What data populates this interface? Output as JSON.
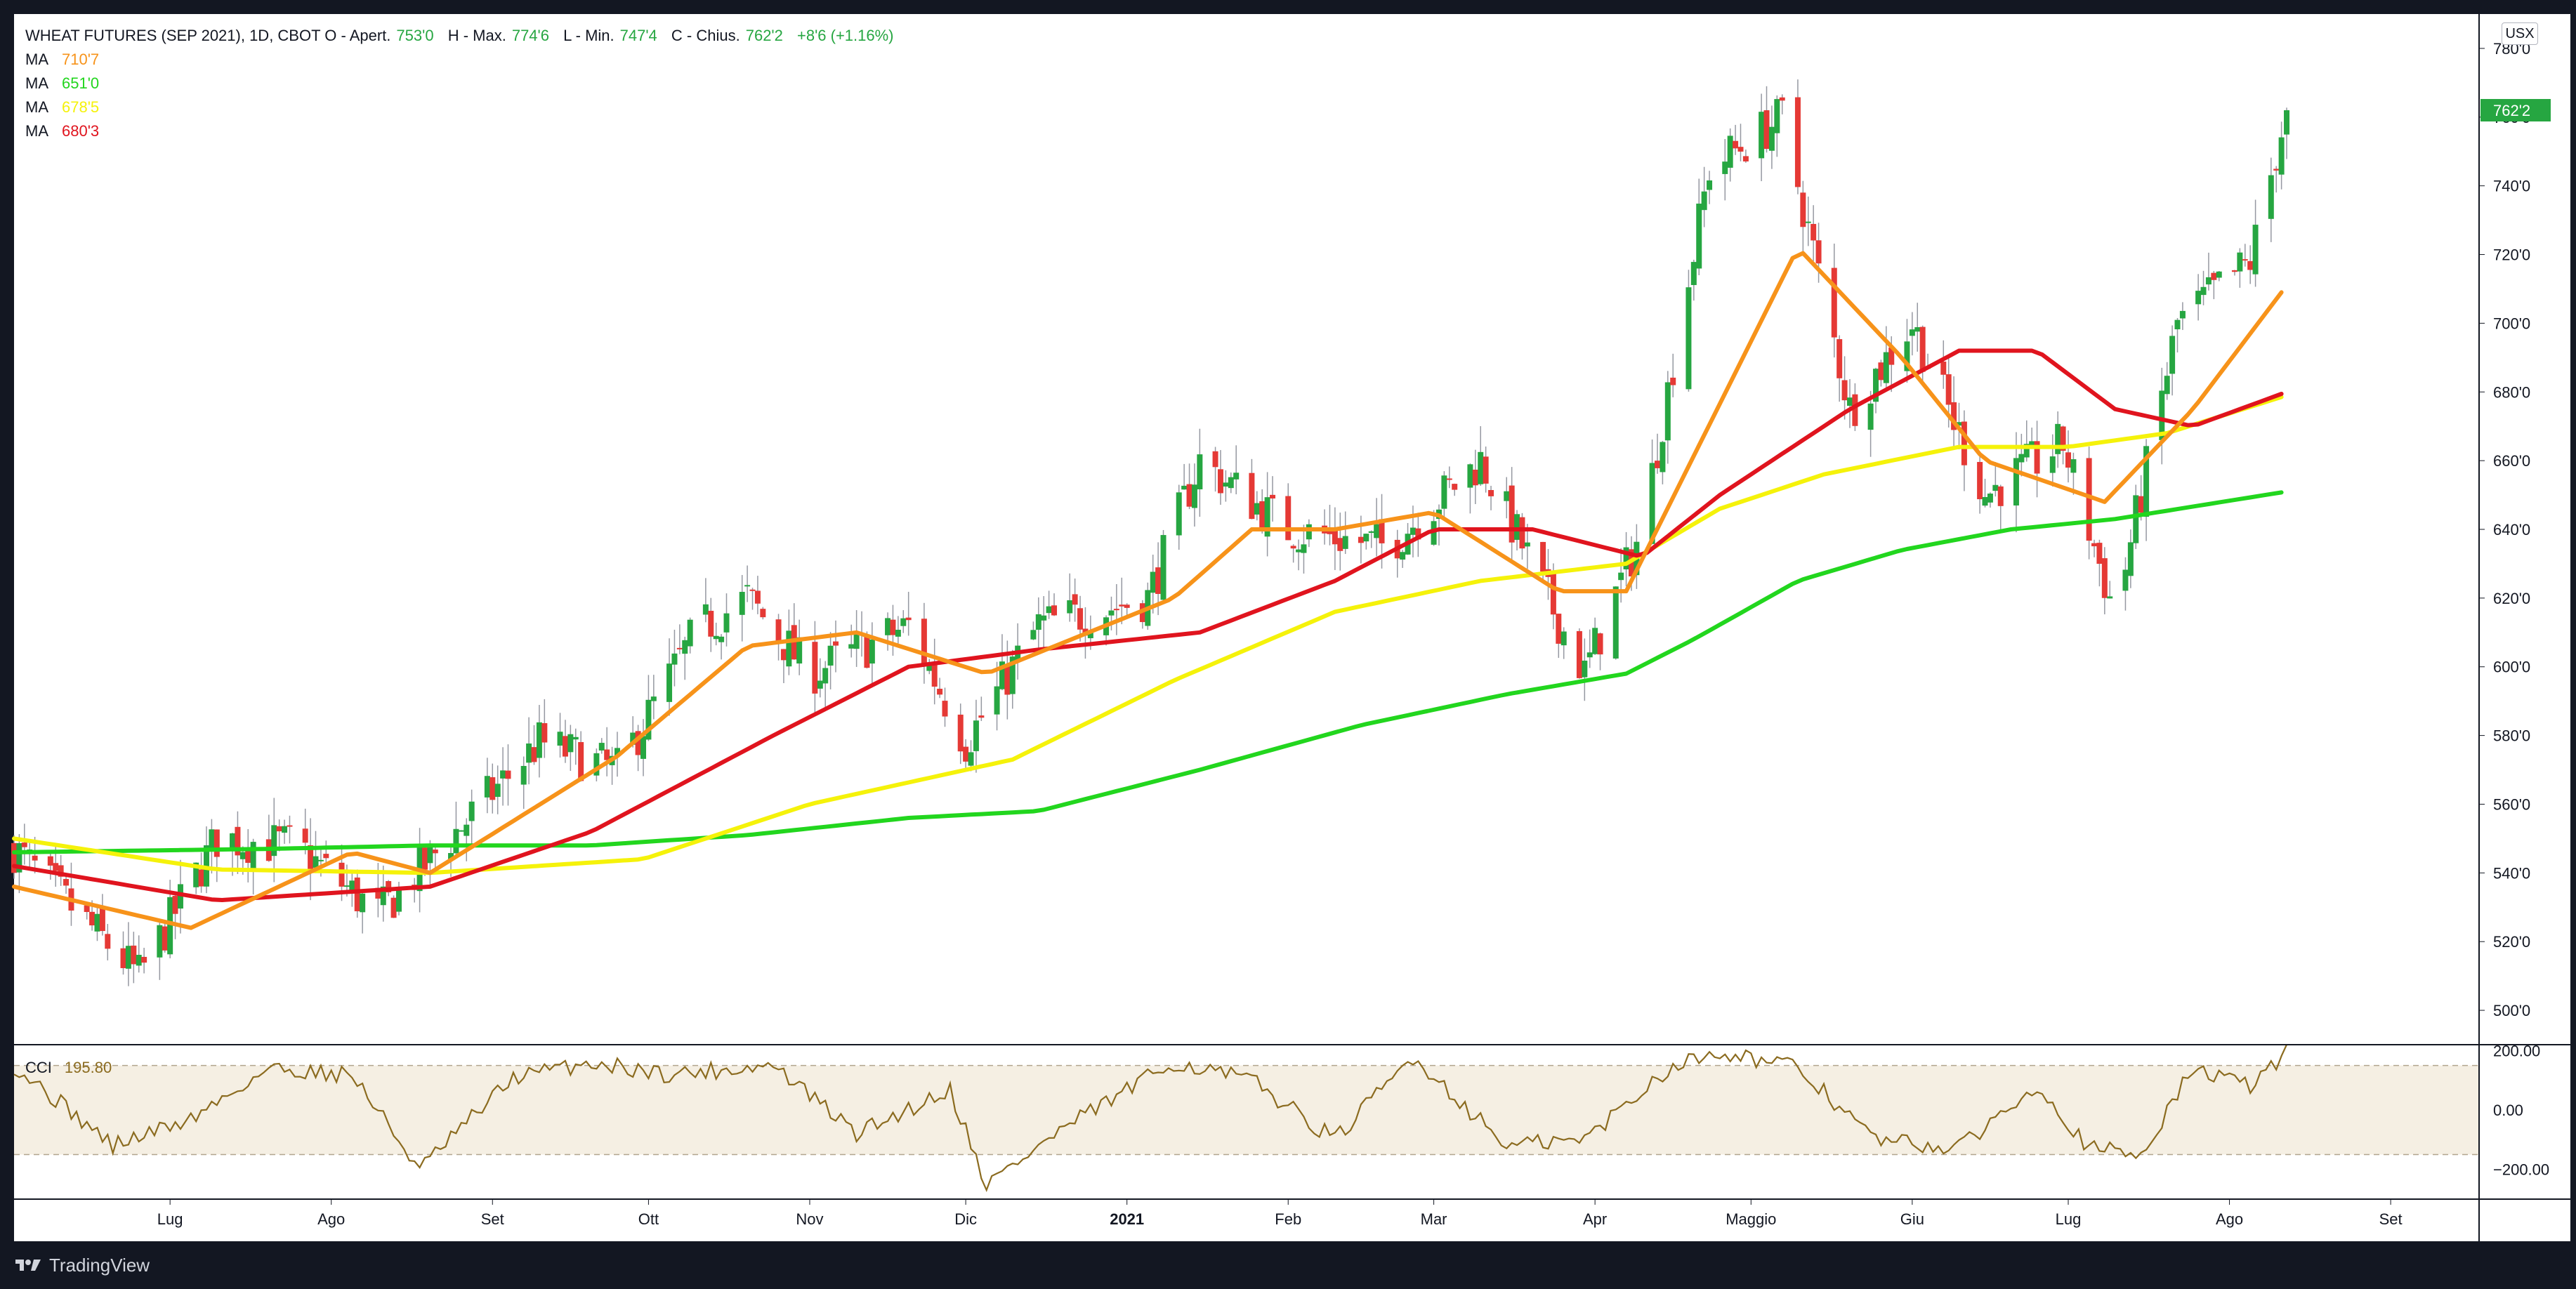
{
  "symbol": {
    "title": "WHEAT FUTURES (SEP 2021), 1D, CBOT",
    "open_label": "O - Apert.",
    "open": "753'0",
    "high_label": "H - Max.",
    "high": "774'6",
    "low_label": "L - Min.",
    "low": "747'4",
    "close_label": "C - Chius.",
    "close": "762'2",
    "change": "+8'6 (+1.16%)",
    "currency_button": "USX",
    "last_price_badge": "762'2"
  },
  "moving_averages": [
    {
      "label": "MA",
      "value": "710'7",
      "color": "#F7931A"
    },
    {
      "label": "MA",
      "value": "651'0",
      "color": "#22D61E"
    },
    {
      "label": "MA",
      "value": "678'5",
      "color": "#F5F20A"
    },
    {
      "label": "MA",
      "value": "680'3",
      "color": "#E0141E"
    }
  ],
  "cci": {
    "label": "CCI",
    "value": "195.80",
    "color": "#8B6B1F"
  },
  "branding": {
    "name": "TradingView"
  },
  "colors": {
    "up": "#26A641",
    "down": "#E53935",
    "wick": "#9598a1",
    "background": "#ffffff"
  },
  "chart_data": {
    "type": "candlestick",
    "x_tick_labels": [
      "Lug",
      "Ago",
      "Set",
      "Ott",
      "Nov",
      "Dic",
      "2021",
      "Feb",
      "Mar",
      "Apr",
      "Maggio",
      "Giu",
      "Lug",
      "Ago",
      "Set"
    ],
    "y_tick_labels": [
      "500'0",
      "520'0",
      "540'0",
      "560'0",
      "580'0",
      "600'0",
      "620'0",
      "640'0",
      "660'0",
      "680'0",
      "700'0",
      "720'0",
      "740'0",
      "760'0",
      "780'0"
    ],
    "ylim": [
      490,
      790
    ],
    "price_anchors": {
      "x": [
        "2020-06-01",
        "2020-06-25",
        "2020-07-10",
        "2020-07-25",
        "2020-08-10",
        "2020-08-25",
        "2020-09-10",
        "2020-09-25",
        "2020-10-10",
        "2020-10-20",
        "2020-11-01",
        "2020-11-20",
        "2020-12-01",
        "2020-12-15",
        "2021-01-05",
        "2021-01-15",
        "2021-02-01",
        "2021-02-20",
        "2021-03-10",
        "2021-03-30",
        "2021-04-10",
        "2021-04-23",
        "2021-05-07",
        "2021-05-20",
        "2021-06-01",
        "2021-06-15",
        "2021-06-30",
        "2021-07-10",
        "2021-07-22",
        "2021-08-05",
        "2021-08-12"
      ],
      "close": [
        547,
        510,
        550,
        548,
        528,
        552,
        578,
        570,
        610,
        620,
        598,
        612,
        578,
        612,
        620,
        660,
        640,
        635,
        660,
        598,
        640,
        745,
        760,
        675,
        700,
        650,
        665,
        615,
        700,
        718,
        762
      ]
    },
    "ma_fast": {
      "x": [
        "2020-06-01",
        "2020-07-05",
        "2020-08-05",
        "2020-08-20",
        "2020-09-25",
        "2020-10-20",
        "2020-11-10",
        "2020-12-05",
        "2021-01-10",
        "2021-01-25",
        "2021-02-10",
        "2021-03-01",
        "2021-03-25",
        "2021-04-07",
        "2021-05-10",
        "2021-05-30",
        "2021-06-15",
        "2021-07-08",
        "2021-07-25",
        "2021-08-12"
      ],
      "y": [
        536,
        524,
        546,
        540,
        574,
        606,
        610,
        598,
        620,
        640,
        640,
        645,
        622,
        622,
        722,
        690,
        660,
        648,
        675,
        711
      ]
    },
    "ma_slow": {
      "x": [
        "2020-06-01",
        "2020-07-20",
        "2020-08-20",
        "2020-09-20",
        "2020-10-20",
        "2020-11-20",
        "2020-12-15",
        "2021-01-15",
        "2021-02-15",
        "2021-03-15",
        "2021-04-07",
        "2021-04-20",
        "2021-05-10",
        "2021-05-30",
        "2021-06-20",
        "2021-07-10",
        "2021-08-12"
      ],
      "y": [
        546,
        547,
        548,
        548,
        551,
        556,
        558,
        570,
        583,
        592,
        598,
        608,
        625,
        634,
        640,
        643,
        651
      ]
    },
    "ma_mid": {
      "x": [
        "2020-06-01",
        "2020-07-10",
        "2020-08-20",
        "2020-09-30",
        "2020-11-01",
        "2020-12-10",
        "2021-01-10",
        "2021-02-10",
        "2021-03-10",
        "2021-04-07",
        "2021-04-25",
        "2021-05-15",
        "2021-06-10",
        "2021-07-01",
        "2021-07-20",
        "2021-08-12"
      ],
      "y": [
        550,
        541,
        540,
        544,
        560,
        573,
        596,
        616,
        625,
        630,
        646,
        656,
        664,
        664,
        668,
        679
      ]
    },
    "ma_red": {
      "x": [
        "2020-06-01",
        "2020-07-10",
        "2020-08-20",
        "2020-09-20",
        "2020-10-25",
        "2020-11-20",
        "2020-12-15",
        "2021-01-15",
        "2021-02-10",
        "2021-03-01",
        "2021-03-20",
        "2021-04-10",
        "2021-04-25",
        "2021-05-20",
        "2021-06-10",
        "2021-06-25",
        "2021-07-10",
        "2021-07-25",
        "2021-08-12"
      ],
      "y": [
        542,
        532,
        536,
        552,
        580,
        600,
        605,
        610,
        625,
        640,
        640,
        632,
        650,
        675,
        692,
        692,
        675,
        670,
        680
      ]
    },
    "cci_ylim": [
      -300,
      220
    ],
    "cci_ticks": [
      "200.00",
      "0.00",
      "−200.00"
    ],
    "cci_band": [
      -150,
      150
    ],
    "cci_anchors": {
      "x": [
        "2020-06-01",
        "2020-06-20",
        "2020-07-05",
        "2020-07-20",
        "2020-08-05",
        "2020-08-18",
        "2020-09-05",
        "2020-09-20",
        "2020-10-05",
        "2020-10-25",
        "2020-11-10",
        "2020-11-28",
        "2020-12-05",
        "2020-12-20",
        "2021-01-10",
        "2021-01-25",
        "2021-02-10",
        "2021-02-25",
        "2021-03-15",
        "2021-03-30",
        "2021-04-15",
        "2021-04-25",
        "2021-05-10",
        "2021-05-25",
        "2021-06-10",
        "2021-06-25",
        "2021-07-05",
        "2021-07-15",
        "2021-07-25",
        "2021-08-05",
        "2021-08-12"
      ],
      "y": [
        150,
        -120,
        -30,
        140,
        120,
        -200,
        110,
        160,
        120,
        150,
        -80,
        70,
        -250,
        -60,
        160,
        100,
        -100,
        180,
        -120,
        -100,
        140,
        200,
        140,
        -100,
        -130,
        90,
        -130,
        -150,
        140,
        80,
        196
      ]
    }
  }
}
